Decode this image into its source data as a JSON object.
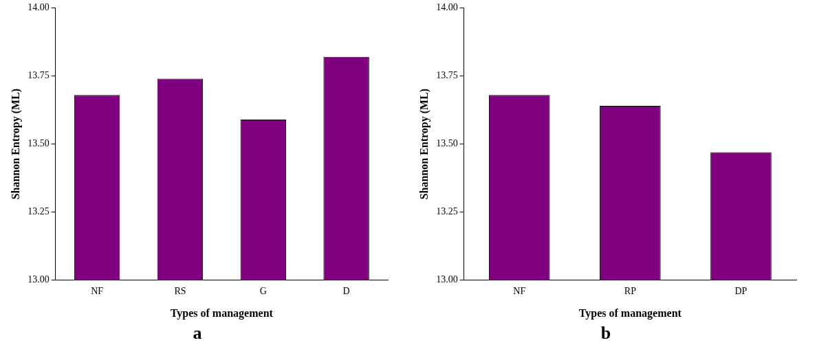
{
  "chart_data": [
    {
      "type": "bar",
      "title": "a",
      "xlabel": "Types of management",
      "ylabel": "Shannon Entropy (ML)",
      "categories": [
        "NF",
        "RS",
        "G",
        "D"
      ],
      "values": [
        13.68,
        13.74,
        13.59,
        13.82
      ],
      "color": "#800080",
      "ylim": [
        13,
        14
      ],
      "yticks": [
        {
          "value": 13,
          "label": "13.00"
        },
        {
          "value": 13.25,
          "label": "13.25"
        },
        {
          "value": 13.5,
          "label": "13.50"
        },
        {
          "value": 13.75,
          "label": "13.75"
        },
        {
          "value": 14,
          "label": "14.00"
        }
      ],
      "grid": false,
      "legend": false
    },
    {
      "type": "bar",
      "title": "b",
      "xlabel": "Types of management",
      "ylabel": "Shannon Entropy (ML)",
      "categories": [
        "NF",
        "RP",
        "DP"
      ],
      "values": [
        13.68,
        13.64,
        13.47
      ],
      "color": "#800080",
      "ylim": [
        13,
        14
      ],
      "yticks": [
        {
          "value": 13,
          "label": "13.00"
        },
        {
          "value": 13.25,
          "label": "13.25"
        },
        {
          "value": 13.5,
          "label": "13.50"
        },
        {
          "value": 13.75,
          "label": "13.75"
        },
        {
          "value": 14,
          "label": "14.00"
        }
      ],
      "grid": false,
      "legend": false
    }
  ]
}
